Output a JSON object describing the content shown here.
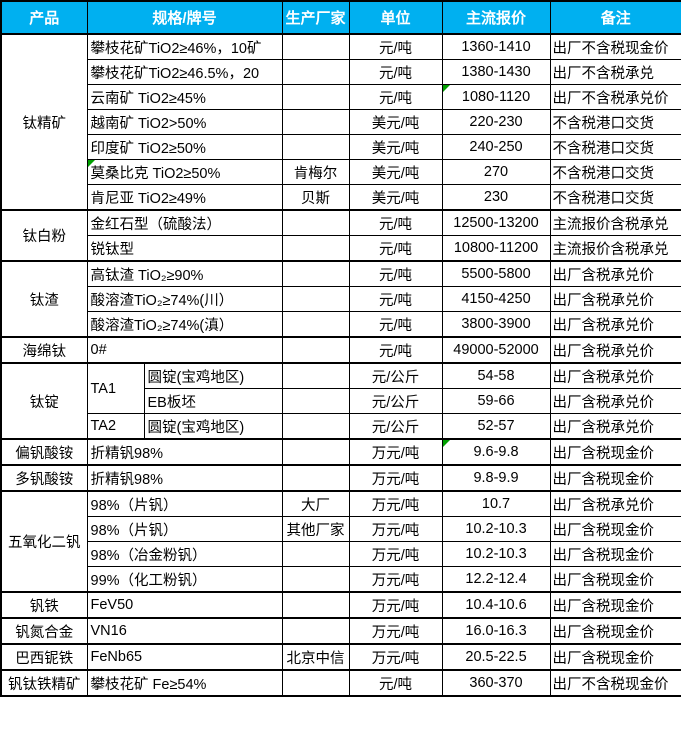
{
  "colors": {
    "header_bg": "#00B0F0",
    "header_text": "#FFFFFF",
    "border": "#000000",
    "error_indicator_green": "#00A000"
  },
  "chart_data": {
    "type": "table",
    "columns": [
      "产品",
      "规格/牌号",
      "生产厂家",
      "单位",
      "主流报价",
      "备注"
    ],
    "groups": [
      {
        "product": "钛精矿",
        "rows": [
          {
            "spec": "攀枝花矿TiO2≥46%，10矿",
            "unit": "元/吨",
            "price": "1360-1410",
            "note": "出厂不含税现金价"
          },
          {
            "spec": "攀枝花矿TiO2≥46.5%，20",
            "unit": "元/吨",
            "price": "1380-1430",
            "note": "出厂不含税承兑"
          },
          {
            "spec": "云南矿 TiO2≥45%",
            "unit": "元/吨",
            "price": "1080-1120",
            "note": "出厂不含税承兑价",
            "price_flag": true
          },
          {
            "spec": "越南矿 TiO2>50%",
            "unit": "美元/吨",
            "price": "220-230",
            "note": "不含税港口交货"
          },
          {
            "spec": "印度矿 TiO2≥50%",
            "unit": "美元/吨",
            "price": "240-250",
            "note": "不含税港口交货"
          },
          {
            "spec": "莫桑比克 TiO2≥50%",
            "maker": "肯梅尔",
            "unit": "美元/吨",
            "price": "270",
            "note": "不含税港口交货",
            "spec_flag": true
          },
          {
            "spec": "肯尼亚 TiO2≥49%",
            "maker": "贝斯",
            "unit": "美元/吨",
            "price": "230",
            "note": "不含税港口交货"
          }
        ]
      },
      {
        "product": "钛白粉",
        "rows": [
          {
            "spec": "金红石型（硫酸法）",
            "unit": "元/吨",
            "price": "12500-13200",
            "note": "主流报价含税承兑"
          },
          {
            "spec": "锐钛型",
            "unit": "元/吨",
            "price": "10800-11200",
            "note": "主流报价含税承兑"
          }
        ]
      },
      {
        "product": "钛渣",
        "rows": [
          {
            "spec": "高钛渣 TiO₂≥90%",
            "unit": "元/吨",
            "price": "5500-5800",
            "note": "出厂含税承兑价"
          },
          {
            "spec": "酸溶渣TiO₂≥74%(川）",
            "unit": "元/吨",
            "price": "4150-4250",
            "note": "出厂含税承兑价"
          },
          {
            "spec": "酸溶渣TiO₂≥74%(滇）",
            "unit": "元/吨",
            "price": "3800-3900",
            "note": "出厂含税承兑价"
          }
        ]
      },
      {
        "product": "海绵钛",
        "rows": [
          {
            "spec": "0#",
            "unit": "元/吨",
            "price": "49000-52000",
            "note": "出厂含税承兑价"
          }
        ]
      },
      {
        "product": "钛锭",
        "rows": [
          {
            "spec": "TA1",
            "spec_rowspan": 2,
            "spec2": "圆锭(宝鸡地区)",
            "unit": "元/公斤",
            "price": "54-58",
            "note": "出厂含税承兑价"
          },
          {
            "spec2": "EB板坯",
            "unit": "元/公斤",
            "price": "59-66",
            "note": "出厂含税承兑价"
          },
          {
            "spec": "TA2",
            "spec2": "圆锭(宝鸡地区)",
            "unit": "元/公斤",
            "price": "52-57",
            "note": "出厂含税承兑价"
          }
        ]
      },
      {
        "product": "偏钒酸铵",
        "rows": [
          {
            "spec": "折精钒98%",
            "unit": "万元/吨",
            "price": "9.6-9.8",
            "note": "出厂含税现金价",
            "price_flag": true
          }
        ]
      },
      {
        "product": "多钒酸铵",
        "rows": [
          {
            "spec": "折精钒98%",
            "unit": "万元/吨",
            "price": "9.8-9.9",
            "note": "出厂含税现金价"
          }
        ]
      },
      {
        "product": "五氧化二钒",
        "rows": [
          {
            "spec": "98%（片钒）",
            "maker": "大厂",
            "unit": "万元/吨",
            "price": "10.7",
            "note": "出厂含税承兑价"
          },
          {
            "spec": "98%（片钒）",
            "maker": "其他厂家",
            "unit": "万元/吨",
            "price": "10.2-10.3",
            "note": "出厂含税现金价"
          },
          {
            "spec": "98%（冶金粉钒）",
            "unit": "万元/吨",
            "price": "10.2-10.3",
            "note": "出厂含税现金价"
          },
          {
            "spec": "99%（化工粉钒）",
            "unit": "万元/吨",
            "price": "12.2-12.4",
            "note": "出厂含税现金价"
          }
        ]
      },
      {
        "product": "钒铁",
        "rows": [
          {
            "spec": "FeV50",
            "unit": "万元/吨",
            "price": "10.4-10.6",
            "note": "出厂含税现金价"
          }
        ]
      },
      {
        "product": "钒氮合金",
        "rows": [
          {
            "spec": "VN16",
            "unit": "万元/吨",
            "price": "16.0-16.3",
            "note": "出厂含税现金价"
          }
        ]
      },
      {
        "product": "巴西铌铁",
        "rows": [
          {
            "spec": "FeNb65",
            "maker": "北京中信",
            "unit": "万元/吨",
            "price": "20.5-22.5",
            "note": "出厂含税现金价"
          }
        ]
      },
      {
        "product": "钒钛铁精矿",
        "rows": [
          {
            "spec": "攀枝花矿 Fe≥54%",
            "unit": "元/吨",
            "price": "360-370",
            "note": "出厂不含税现金价"
          }
        ]
      }
    ]
  }
}
